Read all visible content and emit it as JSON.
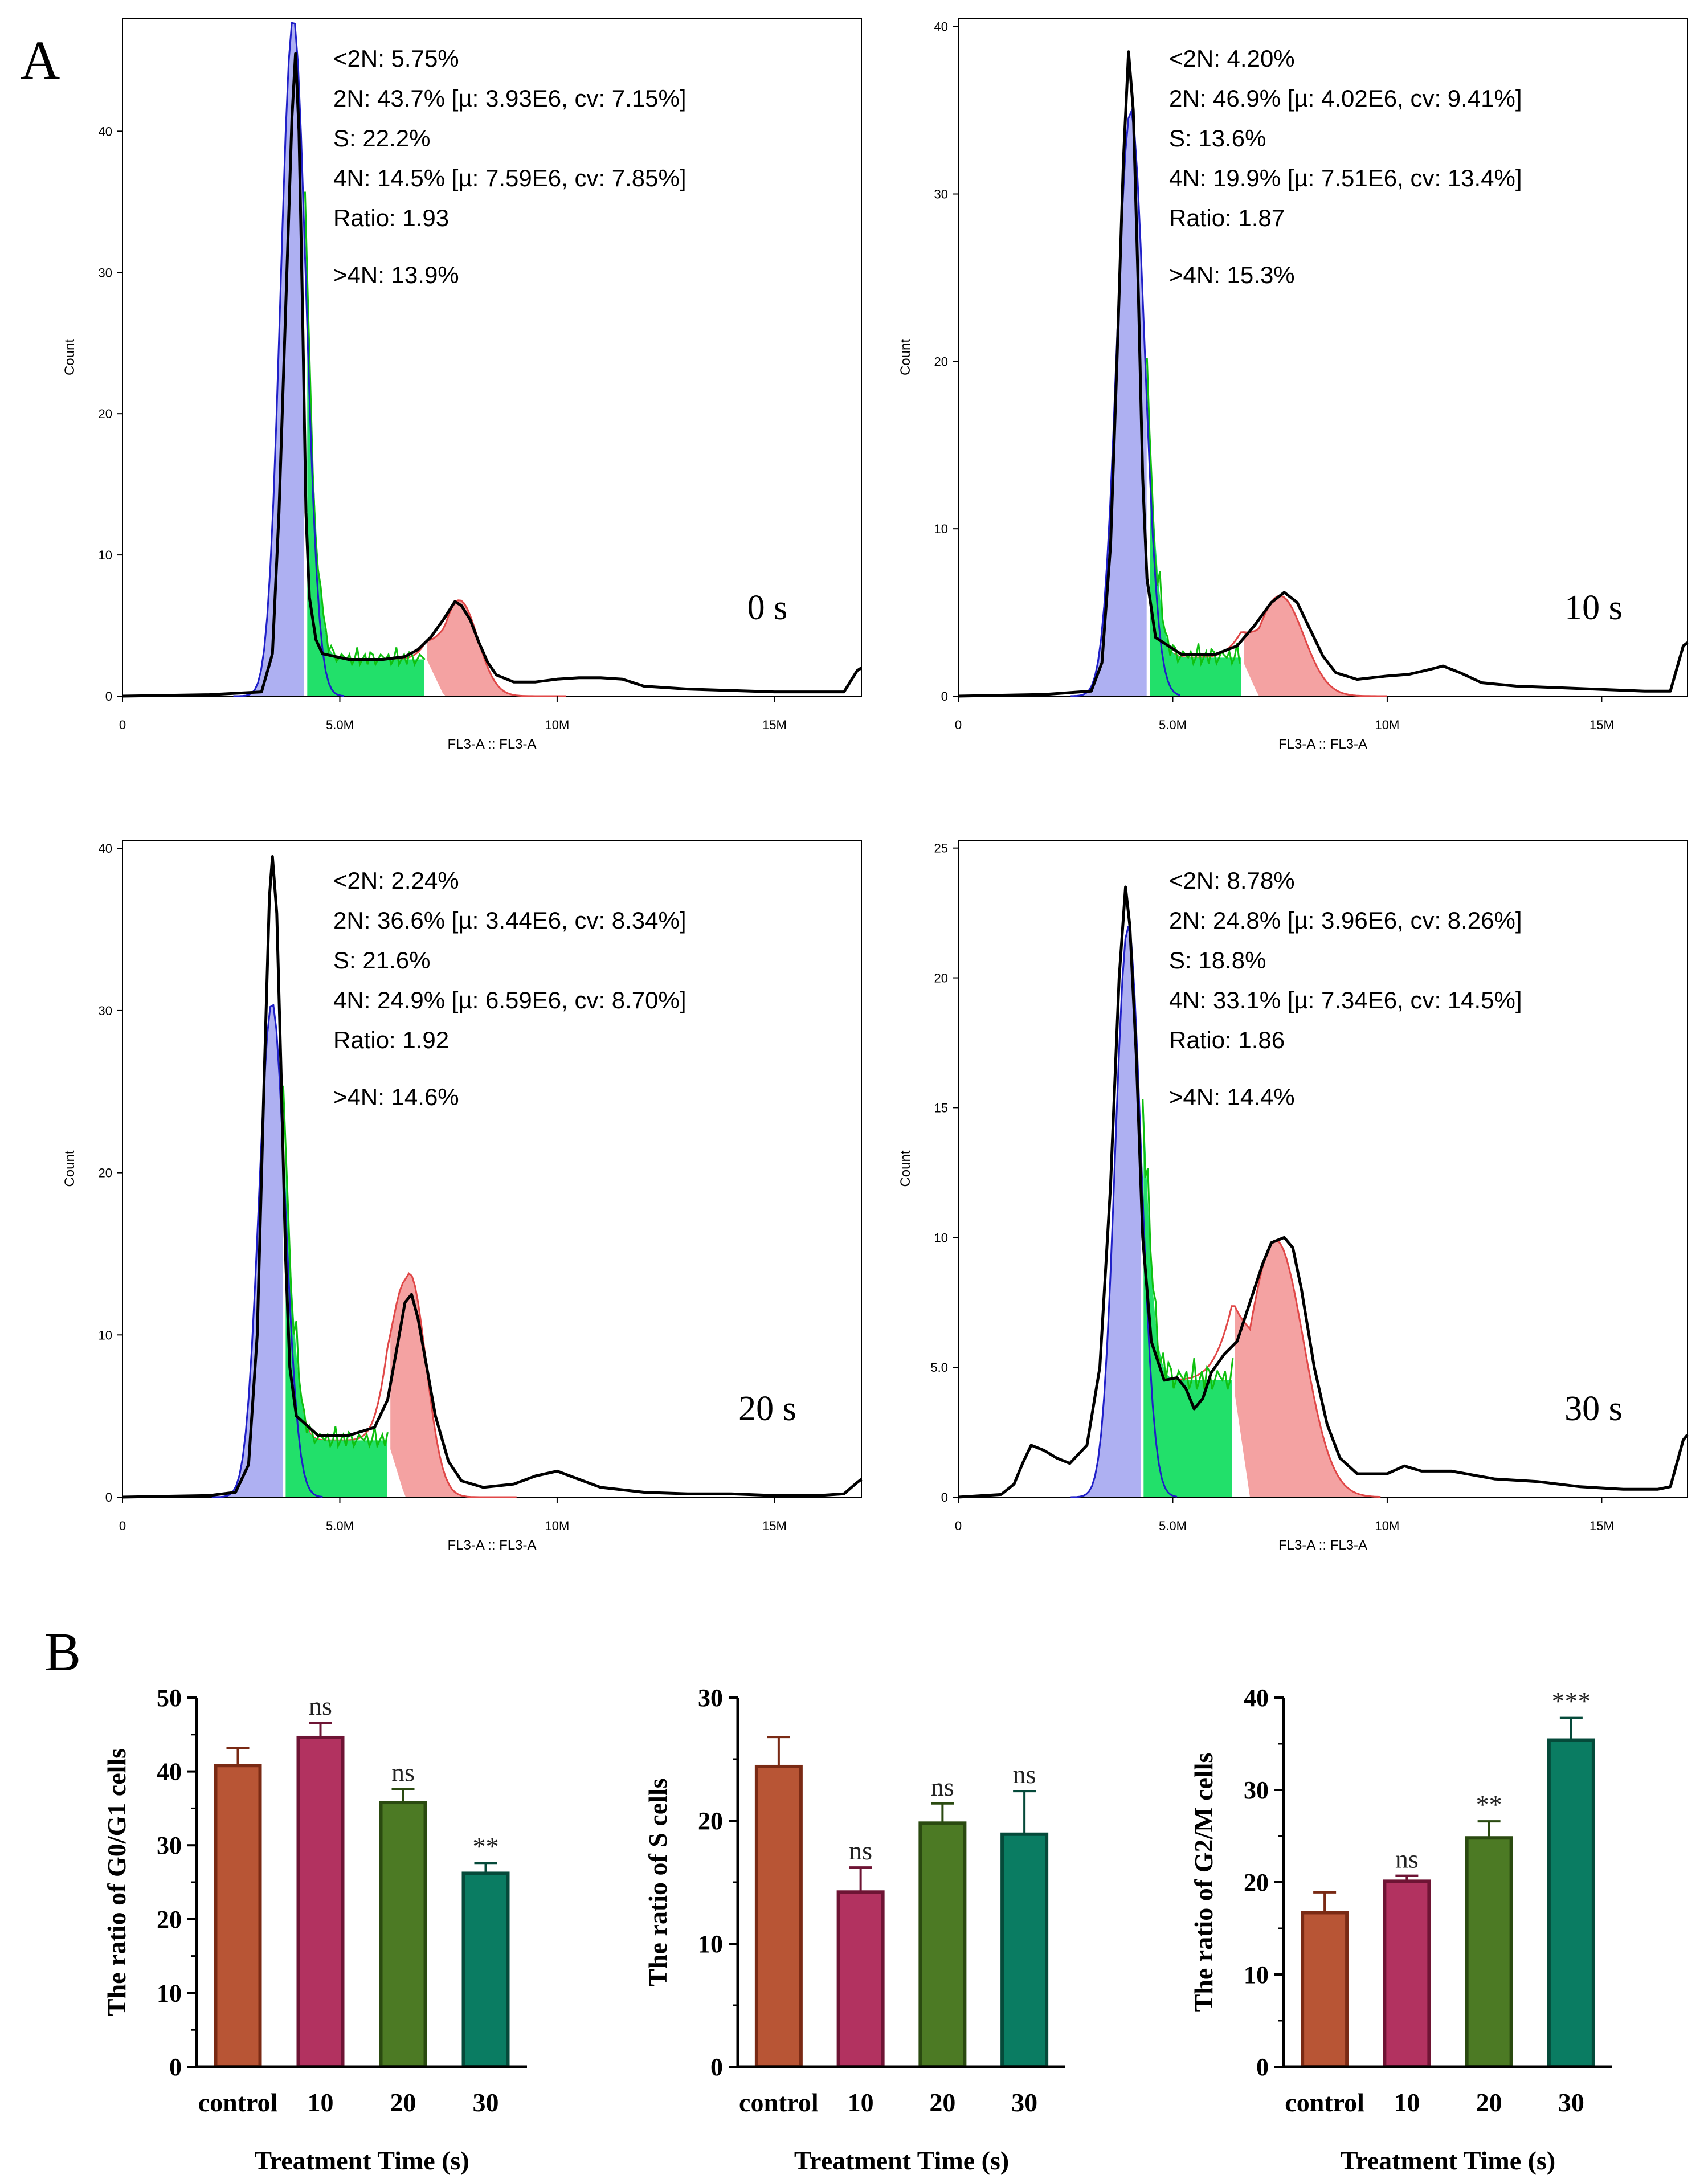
{
  "panel_a_label": "A",
  "panel_b_label": "B",
  "colors": {
    "blue_fill": "#aeb0f2",
    "blue_line": "#2020c8",
    "green_fill": "#22e06a",
    "green_line": "#10c010",
    "red_fill": "#f4a2a2",
    "red_line": "#e04848",
    "black_line": "#000000",
    "bar_control": "#b85535",
    "bar_control_edge": "#7a2a14",
    "bar_10": "#b23260",
    "bar_10_edge": "#6e1434",
    "bar_20": "#4c7a24",
    "bar_20_edge": "#2a4a10",
    "bar_30": "#0a7c62",
    "bar_30_edge": "#054a3a"
  },
  "chart_data": [
    {
      "type": "area",
      "panel": "A",
      "time_label": "0 s",
      "xlabel": "FL3-A :: FL3-A",
      "ylabel": "Count",
      "x_ticks": [
        "0",
        "5.0M",
        "10M",
        "15M"
      ],
      "x_tick_values": [
        0,
        5,
        10,
        15
      ],
      "y_ticks": [
        "0",
        "10",
        "20",
        "30",
        "40"
      ],
      "y_tick_values": [
        0,
        10,
        20,
        30,
        40
      ],
      "xlim": [
        0,
        17
      ],
      "ylim": [
        0,
        48
      ],
      "stats": [
        "<2N: 5.75%",
        "2N: 43.7%   [µ: 3.93E6, cv: 7.15%]",
        "S: 22.2%",
        "4N: 14.5%   [µ: 7.59E6, cv: 7.85%]",
        "Ratio: 1.93",
        ">4N: 13.9%"
      ],
      "g1_peak": 3.93,
      "g1_height": 48,
      "g1_sd": 0.29,
      "g2_peak": 7.75,
      "g2_height": 6.8,
      "g2_sd": 0.42,
      "s_start": 4.2,
      "s_end": 7.0,
      "s_level": 2.6,
      "observed": [
        [
          0,
          0
        ],
        [
          2,
          0.1
        ],
        [
          3.2,
          0.3
        ],
        [
          3.45,
          3
        ],
        [
          3.6,
          13
        ],
        [
          3.75,
          27
        ],
        [
          3.9,
          41
        ],
        [
          3.98,
          45.5
        ],
        [
          4.06,
          40
        ],
        [
          4.15,
          26
        ],
        [
          4.22,
          13
        ],
        [
          4.3,
          7
        ],
        [
          4.45,
          4
        ],
        [
          4.6,
          3
        ],
        [
          5.2,
          2.6
        ],
        [
          6.0,
          2.6
        ],
        [
          6.5,
          2.8
        ],
        [
          6.8,
          3.3
        ],
        [
          7.1,
          4.2
        ],
        [
          7.4,
          5.5
        ],
        [
          7.65,
          6.7
        ],
        [
          7.8,
          6.4
        ],
        [
          8.0,
          5.4
        ],
        [
          8.2,
          3.8
        ],
        [
          8.4,
          2.4
        ],
        [
          8.6,
          1.5
        ],
        [
          9.0,
          1.0
        ],
        [
          9.5,
          1.0
        ],
        [
          10.0,
          1.2
        ],
        [
          10.5,
          1.3
        ],
        [
          11.0,
          1.3
        ],
        [
          11.5,
          1.2
        ],
        [
          12.0,
          0.7
        ],
        [
          13,
          0.5
        ],
        [
          14,
          0.4
        ],
        [
          15,
          0.3
        ],
        [
          16,
          0.3
        ],
        [
          16.6,
          0.3
        ],
        [
          16.9,
          1.8
        ],
        [
          17,
          2
        ]
      ]
    },
    {
      "type": "area",
      "panel": "A",
      "time_label": "10 s",
      "xlabel": "FL3-A :: FL3-A",
      "ylabel": "Count",
      "x_ticks": [
        "0",
        "5.0M",
        "10M",
        "15M"
      ],
      "x_tick_values": [
        0,
        5,
        10,
        15
      ],
      "y_ticks": [
        "0",
        "10",
        "20",
        "30",
        "40"
      ],
      "y_tick_values": [
        0,
        10,
        20,
        30,
        40
      ],
      "xlim": [
        0,
        17
      ],
      "ylim": [
        0,
        40.5
      ],
      "stats": [
        "<2N: 4.20%",
        "2N: 46.9%   [µ: 4.02E6, cv: 9.41%]",
        "S: 13.6%",
        "4N: 19.9%   [µ: 7.51E6, cv: 13.4%]",
        "Ratio: 1.87",
        ">4N: 15.3%"
      ],
      "g1_peak": 4.02,
      "g1_height": 35,
      "g1_sd": 0.32,
      "g2_peak": 7.5,
      "g2_height": 6.0,
      "g2_sd": 0.55,
      "s_start": 4.4,
      "s_end": 6.6,
      "s_level": 2.3,
      "observed": [
        [
          0,
          0
        ],
        [
          2,
          0.1
        ],
        [
          3.1,
          0.3
        ],
        [
          3.35,
          2
        ],
        [
          3.55,
          9
        ],
        [
          3.7,
          20
        ],
        [
          3.85,
          32
        ],
        [
          3.97,
          38.5
        ],
        [
          4.08,
          35
        ],
        [
          4.2,
          24
        ],
        [
          4.3,
          13
        ],
        [
          4.4,
          7
        ],
        [
          4.6,
          3.5
        ],
        [
          5.2,
          2.5
        ],
        [
          6.0,
          2.5
        ],
        [
          6.5,
          3.0
        ],
        [
          6.9,
          4.2
        ],
        [
          7.3,
          5.6
        ],
        [
          7.6,
          6.2
        ],
        [
          7.9,
          5.6
        ],
        [
          8.2,
          4.0
        ],
        [
          8.5,
          2.4
        ],
        [
          8.8,
          1.4
        ],
        [
          9.3,
          1.0
        ],
        [
          10.0,
          1.2
        ],
        [
          10.5,
          1.3
        ],
        [
          11.0,
          1.6
        ],
        [
          11.3,
          1.8
        ],
        [
          11.7,
          1.4
        ],
        [
          12.2,
          0.8
        ],
        [
          13,
          0.6
        ],
        [
          14,
          0.5
        ],
        [
          15,
          0.4
        ],
        [
          16,
          0.3
        ],
        [
          16.6,
          0.3
        ],
        [
          16.9,
          3.0
        ],
        [
          17,
          3.2
        ]
      ]
    },
    {
      "type": "area",
      "panel": "A",
      "time_label": "20 s",
      "xlabel": "FL3-A :: FL3-A",
      "ylabel": "Count",
      "x_ticks": [
        "0",
        "5.0M",
        "10M",
        "15M"
      ],
      "x_tick_values": [
        0,
        5,
        10,
        15
      ],
      "y_ticks": [
        "0",
        "10",
        "20",
        "30",
        "40"
      ],
      "y_tick_values": [
        0,
        10,
        20,
        30,
        40
      ],
      "xlim": [
        0,
        17
      ],
      "ylim": [
        0,
        40.5
      ],
      "stats": [
        "<2N: 2.24%",
        "2N: 36.6%   [µ: 3.44E6, cv: 8.34%]",
        "S: 21.6%",
        "4N: 24.9%   [µ: 6.59E6, cv: 8.70%]",
        "Ratio: 1.92",
        ">4N: 14.6%"
      ],
      "g1_peak": 3.44,
      "g1_height": 30.5,
      "g1_sd": 0.3,
      "g2_peak": 6.6,
      "g2_height": 13.8,
      "g2_sd": 0.38,
      "s_start": 3.7,
      "s_end": 6.1,
      "s_level": 3.5,
      "observed": [
        [
          0,
          0
        ],
        [
          2,
          0.1
        ],
        [
          2.6,
          0.3
        ],
        [
          2.9,
          2
        ],
        [
          3.1,
          10
        ],
        [
          3.25,
          25
        ],
        [
          3.38,
          37
        ],
        [
          3.45,
          39.5
        ],
        [
          3.55,
          36
        ],
        [
          3.65,
          26
        ],
        [
          3.75,
          15
        ],
        [
          3.85,
          8
        ],
        [
          4.0,
          5
        ],
        [
          4.5,
          3.8
        ],
        [
          5.2,
          3.8
        ],
        [
          5.8,
          4.3
        ],
        [
          6.1,
          6
        ],
        [
          6.3,
          9
        ],
        [
          6.5,
          12
        ],
        [
          6.65,
          12.5
        ],
        [
          6.8,
          11
        ],
        [
          7.0,
          8
        ],
        [
          7.2,
          5
        ],
        [
          7.5,
          2.2
        ],
        [
          7.8,
          1.0
        ],
        [
          8.3,
          0.6
        ],
        [
          9.0,
          0.8
        ],
        [
          9.5,
          1.3
        ],
        [
          10.0,
          1.6
        ],
        [
          10.3,
          1.3
        ],
        [
          11.0,
          0.6
        ],
        [
          12,
          0.3
        ],
        [
          13,
          0.2
        ],
        [
          14,
          0.2
        ],
        [
          15,
          0.1
        ],
        [
          16,
          0.1
        ],
        [
          16.6,
          0.2
        ],
        [
          16.9,
          0.9
        ],
        [
          17,
          1.1
        ]
      ]
    },
    {
      "type": "area",
      "panel": "A",
      "time_label": "30 s",
      "xlabel": "FL3-A :: FL3-A",
      "ylabel": "Count",
      "x_ticks": [
        "0",
        "5.0M",
        "10M",
        "15M"
      ],
      "x_tick_values": [
        0,
        5,
        10,
        15
      ],
      "y_ticks": [
        "0",
        "5.0",
        "10",
        "15",
        "20",
        "25"
      ],
      "y_tick_values": [
        0,
        5,
        10,
        15,
        20,
        25
      ],
      "xlim": [
        0,
        17
      ],
      "ylim": [
        0,
        25.3
      ],
      "stats": [
        "<2N: 8.78%",
        "2N: 24.8%   [µ: 3.96E6, cv: 8.26%]",
        "S: 18.8%",
        "4N: 33.1%   [µ: 7.34E6, cv: 14.5%]",
        "Ratio: 1.86",
        ">4N: 14.4%"
      ],
      "g1_peak": 3.96,
      "g1_height": 22,
      "g1_sd": 0.3,
      "g2_peak": 7.4,
      "g2_height": 9.9,
      "g2_sd": 0.65,
      "s_start": 4.3,
      "s_end": 6.4,
      "s_level": 4.5,
      "observed": [
        [
          0,
          0
        ],
        [
          1.0,
          0.1
        ],
        [
          1.3,
          0.5
        ],
        [
          1.5,
          1.3
        ],
        [
          1.7,
          2.0
        ],
        [
          2.0,
          1.8
        ],
        [
          2.3,
          1.5
        ],
        [
          2.6,
          1.3
        ],
        [
          3.0,
          2.0
        ],
        [
          3.3,
          5
        ],
        [
          3.55,
          12
        ],
        [
          3.75,
          20
        ],
        [
          3.9,
          23.5
        ],
        [
          4.0,
          22
        ],
        [
          4.15,
          17
        ],
        [
          4.3,
          10
        ],
        [
          4.5,
          6
        ],
        [
          4.8,
          4.5
        ],
        [
          5.1,
          4.6
        ],
        [
          5.3,
          4.2
        ],
        [
          5.5,
          3.4
        ],
        [
          5.7,
          3.8
        ],
        [
          5.9,
          4.8
        ],
        [
          6.2,
          5.5
        ],
        [
          6.5,
          6.0
        ],
        [
          6.8,
          7.5
        ],
        [
          7.1,
          9
        ],
        [
          7.3,
          9.8
        ],
        [
          7.6,
          10.0
        ],
        [
          7.8,
          9.6
        ],
        [
          8.0,
          8.0
        ],
        [
          8.3,
          5
        ],
        [
          8.6,
          2.8
        ],
        [
          8.9,
          1.5
        ],
        [
          9.3,
          0.9
        ],
        [
          10.0,
          0.9
        ],
        [
          10.4,
          1.2
        ],
        [
          10.8,
          1.0
        ],
        [
          11.5,
          1.0
        ],
        [
          12.5,
          0.7
        ],
        [
          13.5,
          0.6
        ],
        [
          14.5,
          0.4
        ],
        [
          15.5,
          0.3
        ],
        [
          16.3,
          0.3
        ],
        [
          16.6,
          0.4
        ],
        [
          16.9,
          2.2
        ],
        [
          17,
          2.4
        ]
      ]
    },
    {
      "type": "bar",
      "panel": "B",
      "categories": [
        "control",
        "10",
        "20",
        "30"
      ],
      "values": [
        40.8,
        44.6,
        35.8,
        26.2
      ],
      "errors": [
        2.4,
        2.0,
        1.8,
        1.4
      ],
      "significance": [
        "",
        "ns",
        "ns",
        "**"
      ],
      "ylabel": "The ratio of G0/G1 cells",
      "xlabel": "Treatment Time (s)",
      "y_ticks": [
        "0",
        "10",
        "20",
        "30",
        "40",
        "50"
      ],
      "y_tick_values": [
        0,
        10,
        20,
        30,
        40,
        50
      ],
      "ylim": [
        0,
        50
      ]
    },
    {
      "type": "bar",
      "panel": "B",
      "categories": [
        "control",
        "10",
        "20",
        "30"
      ],
      "values": [
        24.4,
        14.2,
        19.8,
        18.9
      ],
      "errors": [
        2.4,
        2.0,
        1.6,
        3.5
      ],
      "significance": [
        "",
        "ns",
        "ns",
        "ns"
      ],
      "ylabel": "The ratio of S cells",
      "xlabel": "Treatment Time (s)",
      "y_ticks": [
        "0",
        "10",
        "20",
        "30"
      ],
      "y_tick_values": [
        0,
        10,
        20,
        30
      ],
      "ylim": [
        0,
        30
      ]
    },
    {
      "type": "bar",
      "panel": "B",
      "categories": [
        "control",
        "10",
        "20",
        "30"
      ],
      "values": [
        16.7,
        20.1,
        24.8,
        35.4
      ],
      "errors": [
        2.2,
        0.6,
        1.8,
        2.4
      ],
      "significance": [
        "",
        "ns",
        "**",
        "***"
      ],
      "ylabel": "The ratio of G2/M cells",
      "xlabel": "Treatment Time (s)",
      "y_ticks": [
        "0",
        "10",
        "20",
        "30",
        "40"
      ],
      "y_tick_values": [
        0,
        10,
        20,
        30,
        40
      ],
      "ylim": [
        0,
        40
      ]
    }
  ]
}
